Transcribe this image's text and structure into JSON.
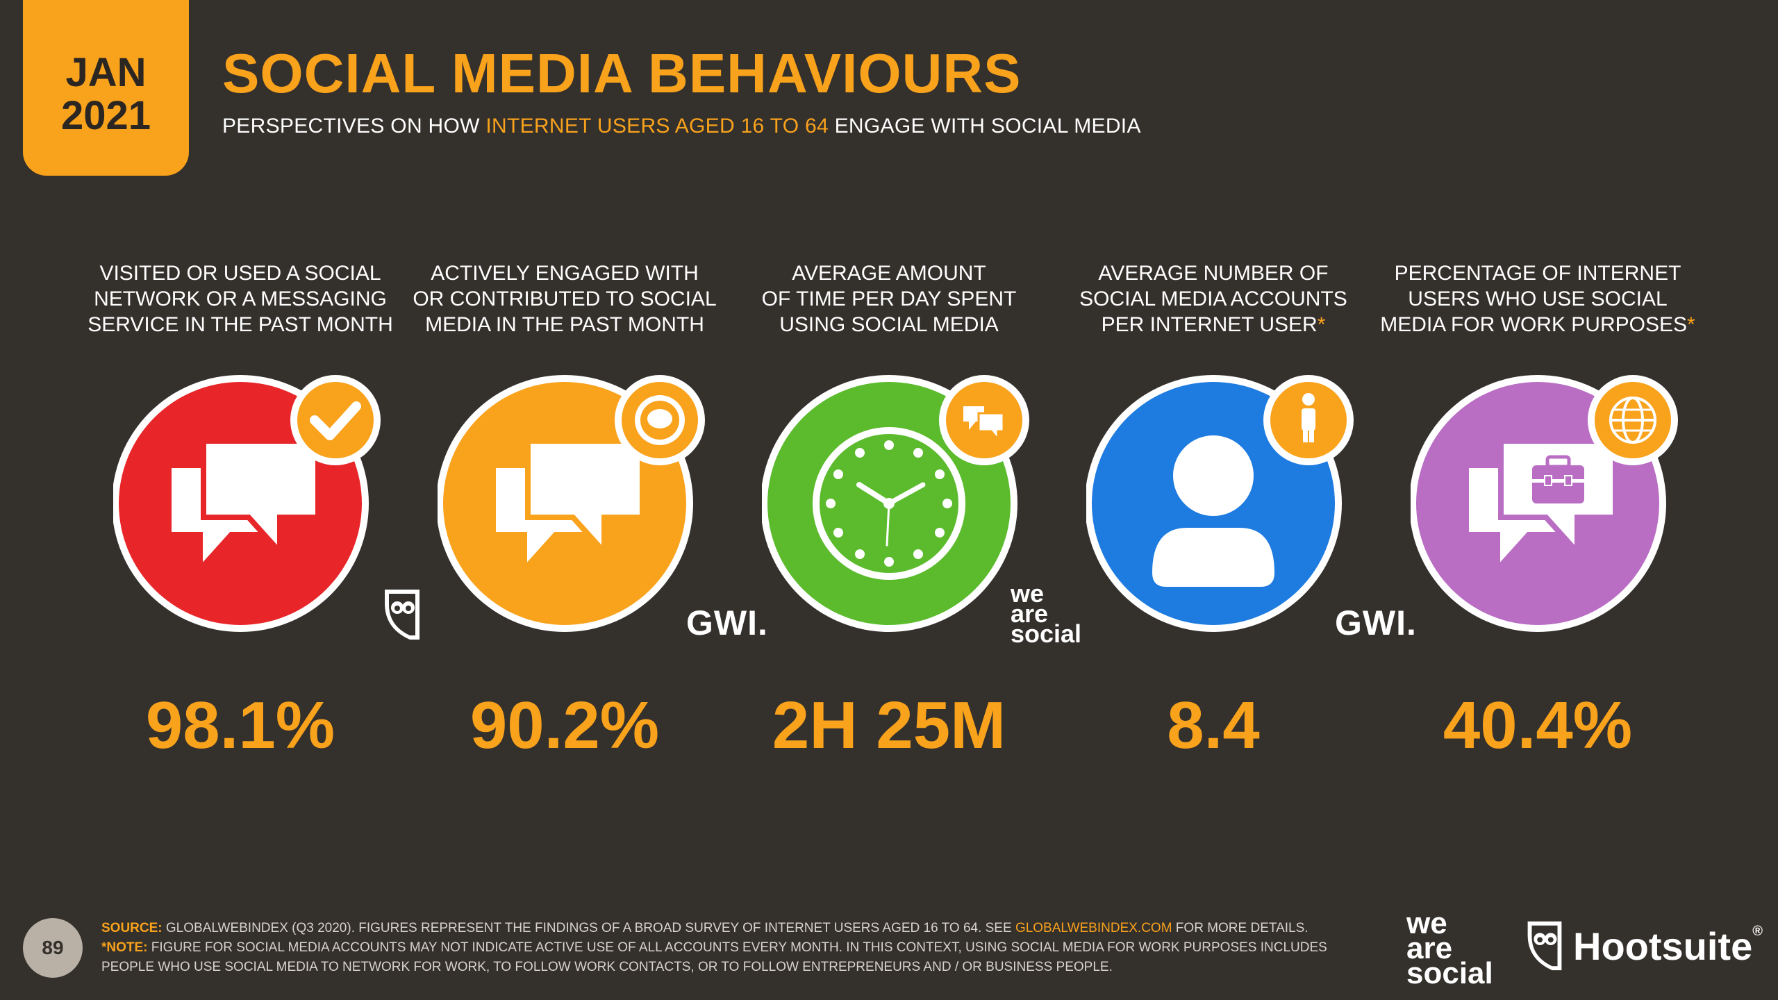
{
  "badge": {
    "month": "JAN",
    "year": "2021"
  },
  "header": {
    "title": "SOCIAL MEDIA BEHAVIOURS",
    "subtitle_pre": "PERSPECTIVES ON HOW ",
    "subtitle_highlight": "INTERNET USERS AGED 16 TO 64",
    "subtitle_post": " ENGAGE WITH SOCIAL MEDIA"
  },
  "stats": [
    {
      "label_lines": [
        "VISITED OR USED A SOCIAL",
        "NETWORK OR A MESSAGING",
        "SERVICE IN THE PAST MONTH"
      ],
      "asterisk": "",
      "value": "98.1%",
      "color": "#e8262a",
      "badge_icon": "checkmark-icon"
    },
    {
      "label_lines": [
        "ACTIVELY ENGAGED WITH",
        "OR CONTRIBUTED TO SOCIAL",
        "MEDIA IN THE PAST MONTH"
      ],
      "asterisk": "",
      "value": "90.2%",
      "color": "#f9a21c",
      "badge_icon": "speech-seal-icon"
    },
    {
      "label_lines": [
        "AVERAGE AMOUNT",
        "OF TIME PER DAY SPENT",
        "USING SOCIAL MEDIA"
      ],
      "asterisk": "",
      "value": "2H 25M",
      "color": "#5bbb2d",
      "badge_icon": "chat-bubbles-icon"
    },
    {
      "label_lines": [
        "AVERAGE NUMBER OF",
        "SOCIAL MEDIA ACCOUNTS",
        "PER INTERNET USER"
      ],
      "asterisk": "*",
      "value": "8.4",
      "color": "#1e7be0",
      "badge_icon": "person-icon"
    },
    {
      "label_lines": [
        "PERCENTAGE OF INTERNET",
        "USERS WHO USE SOCIAL",
        "MEDIA FOR WORK PURPOSES"
      ],
      "asterisk": "*",
      "value": "40.4%",
      "color": "#b96ec4",
      "badge_icon": "globe-icon"
    }
  ],
  "partners": {
    "gwi": "GWI.",
    "we": "we",
    "are": "are",
    "social": "social"
  },
  "footer": {
    "source_key": "SOURCE:",
    "source_text": " GLOBALWEBINDEX (Q3 2020). FIGURES REPRESENT THE FINDINGS OF A BROAD SURVEY OF INTERNET USERS AGED 16 TO 64. SEE ",
    "source_link": "GLOBALWEBINDEX.COM",
    "source_tail": " FOR MORE DETAILS.",
    "note_key": "*NOTE:",
    "note_text": " FIGURE FOR SOCIAL MEDIA ACCOUNTS MAY NOT INDICATE ACTIVE USE OF ALL ACCOUNTS EVERY MONTH. IN THIS CONTEXT, USING SOCIAL MEDIA FOR WORK PURPOSES INCLUDES",
    "note_line2": "PEOPLE WHO USE SOCIAL MEDIA TO NETWORK FOR WORK, TO FOLLOW WORK CONTACTS, OR TO FOLLOW ENTREPRENEURS AND / OR BUSINESS PEOPLE.",
    "page_number": "89"
  },
  "brand": {
    "we": "we",
    "are": "are",
    "social": "social",
    "hootsuite": "Hootsuite",
    "registered": "®"
  },
  "accent": "#f9a21c",
  "background": "#34302c"
}
